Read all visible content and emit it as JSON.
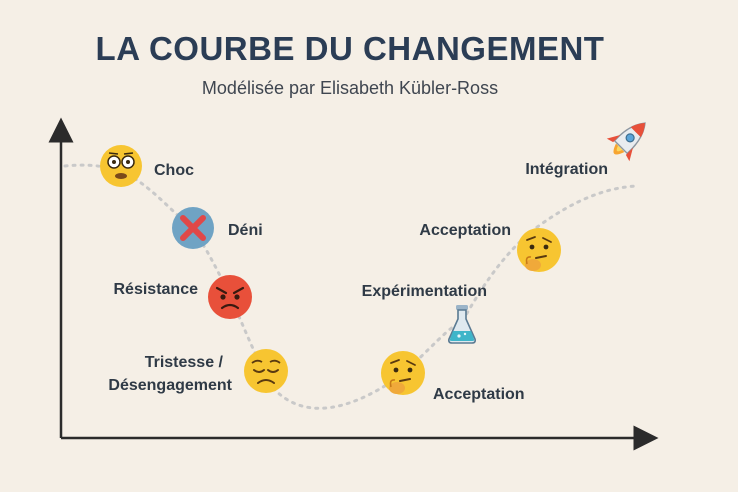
{
  "title": "LA COURBE DU CHANGEMENT",
  "subtitle": "Modélisée par Elisabeth Kübler-Ross",
  "stages": {
    "choc": "Choc",
    "deni": "Déni",
    "resistance": "Résistance",
    "tristesse_line1": "Tristesse /",
    "tristesse_line2": "Désengagement",
    "acceptation_bottom": "Acceptation",
    "experimentation": "Expérimentation",
    "acceptation_top": "Acceptation",
    "integration": "Intégration"
  },
  "colors": {
    "title": "#2b3d55",
    "background": "#f5efe6",
    "curve": "#c9c9c9",
    "emoji_yellow": "#f7c531",
    "emoji_red": "#e8503a",
    "deni_badge": "#6fa3c4",
    "cross": "#e04848"
  },
  "icons": {
    "choc": "shocked-face-icon",
    "deni": "cross-mark-icon",
    "resistance": "angry-face-icon",
    "tristesse": "sad-face-icon",
    "acceptation_bottom": "thinking-face-icon",
    "experimentation": "flask-icon",
    "acceptation_top": "thinking-face-icon",
    "integration": "rocket-icon"
  }
}
